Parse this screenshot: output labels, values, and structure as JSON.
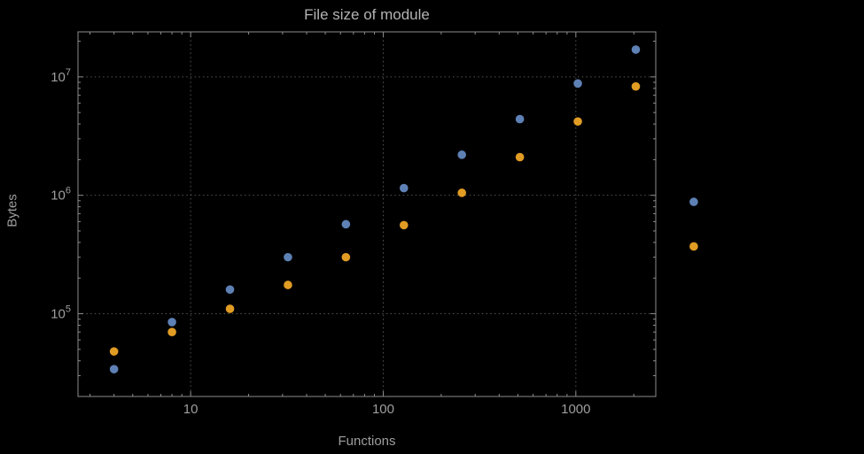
{
  "colors": {
    "background": "#000000",
    "frame": "#8c8c8c",
    "grid": "#555555",
    "title": "#b3b3b3",
    "axis_label": "#9e9e9e",
    "tick_label": "#9e9e9e",
    "series_blue": "#5E81B5",
    "series_orange": "#E19C24"
  },
  "chart_data": {
    "type": "scatter",
    "title": "File size of module",
    "xlabel": "Functions",
    "ylabel": "Bytes",
    "x_scale": "log",
    "y_scale": "log",
    "xlim": [
      2.6,
      2600
    ],
    "ylim": [
      20000,
      24000000
    ],
    "grid": "dotted-major",
    "legend": "none",
    "x": [
      4,
      8,
      16,
      32,
      64,
      128,
      256,
      512,
      1024,
      2048,
      4096
    ],
    "series": [
      {
        "name": "series-blue",
        "color": "#5E81B5",
        "values": [
          34000,
          85000,
          160000,
          300000,
          570000,
          1150000,
          2200000,
          4400000,
          8800000,
          17000000,
          880000
        ]
      },
      {
        "name": "series-orange",
        "color": "#E19C24",
        "values": [
          48000,
          70000,
          110000,
          175000,
          300000,
          560000,
          1050000,
          2100000,
          4200000,
          8300000,
          370000
        ]
      }
    ],
    "x_ticks": [
      {
        "value": 10,
        "label": "10"
      },
      {
        "value": 100,
        "label": "100"
      },
      {
        "value": 1000,
        "label": "1000"
      }
    ],
    "y_ticks": [
      {
        "value": 100000,
        "base": "10",
        "exp": "5"
      },
      {
        "value": 1000000,
        "base": "10",
        "exp": "6"
      },
      {
        "value": 10000000,
        "base": "10",
        "exp": "7"
      }
    ]
  }
}
